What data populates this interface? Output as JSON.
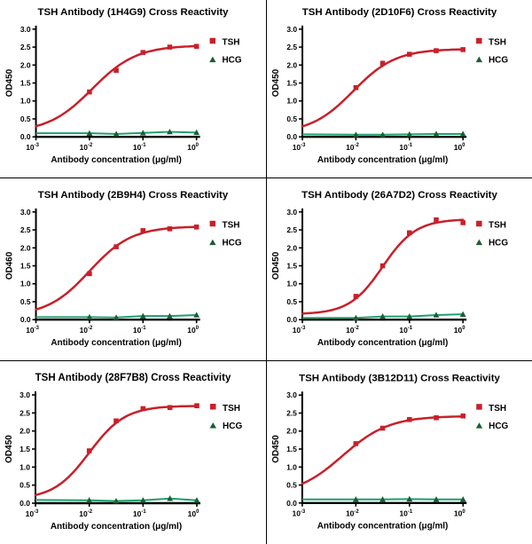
{
  "page": {
    "background": "#ffffff"
  },
  "colors": {
    "tsh": "#c8202a",
    "hcg_line": "#1f9e6e",
    "hcg_marker": "#1b5e33",
    "axis": "#000000",
    "text": "#000000",
    "separator": "#000000"
  },
  "chart_data": [
    {
      "type": "line",
      "title": "TSH Antibody (1H4G9) Cross Reactivity",
      "xlabel": "Antibody concentration (μg/ml)",
      "ylabel": "OD450",
      "xscale": "log",
      "xlim_log10": [
        -3,
        0
      ],
      "ylim": [
        0,
        3
      ],
      "y_ticks": [
        "0.0",
        "0.5",
        "1.0",
        "1.5",
        "2.0",
        "2.5",
        "3.0"
      ],
      "x_tick_base": "10",
      "x_tick_exponents": [
        "-3",
        "-2",
        "-1",
        "0"
      ],
      "legend_entries": [
        "TSH",
        "HCG"
      ],
      "legend_position": "right",
      "grid": false,
      "series": [
        {
          "name": "TSH",
          "marker": "square",
          "x": [
            0.01,
            0.0316,
            0.1,
            0.316,
            1.0
          ],
          "y": [
            1.25,
            1.85,
            2.35,
            2.5,
            2.52
          ],
          "fit4pl": {
            "bottom": 0.12,
            "top": 2.55,
            "logec50": -1.95,
            "hill": 1.05
          }
        },
        {
          "name": "HCG",
          "marker": "triangle",
          "line_x": [
            0.001,
            0.01,
            0.0316,
            0.1,
            0.316,
            1.0
          ],
          "line_y": [
            0.1,
            0.1,
            0.08,
            0.11,
            0.14,
            0.12
          ],
          "x": [
            0.01,
            0.0316,
            0.1,
            0.316,
            1.0
          ],
          "y": [
            0.1,
            0.08,
            0.11,
            0.14,
            0.12
          ]
        }
      ]
    },
    {
      "type": "line",
      "title": "TSH Antibody (2D10F6) Cross Reactivity",
      "xlabel": "Antibody concentration (μg/ml)",
      "ylabel": "OD450",
      "xscale": "log",
      "xlim_log10": [
        -3,
        0
      ],
      "ylim": [
        0,
        3
      ],
      "y_ticks": [
        "0.0",
        "0.5",
        "1.0",
        "1.5",
        "2.0",
        "2.5",
        "3.0"
      ],
      "x_tick_base": "10",
      "x_tick_exponents": [
        "-3",
        "-2",
        "-1",
        "0"
      ],
      "legend_entries": [
        "TSH",
        "HCG"
      ],
      "legend_position": "right",
      "grid": false,
      "series": [
        {
          "name": "TSH",
          "marker": "square",
          "x": [
            0.01,
            0.0316,
            0.1,
            0.316,
            1.0
          ],
          "y": [
            1.37,
            2.05,
            2.3,
            2.4,
            2.43
          ],
          "fit4pl": {
            "bottom": 0.1,
            "top": 2.45,
            "logec50": -2.05,
            "hill": 1.1
          }
        },
        {
          "name": "HCG",
          "marker": "triangle",
          "line_x": [
            0.001,
            0.01,
            0.0316,
            0.1,
            0.316,
            1.0
          ],
          "line_y": [
            0.07,
            0.06,
            0.06,
            0.07,
            0.08,
            0.08
          ],
          "x": [
            0.01,
            0.0316,
            0.1,
            0.316,
            1.0
          ],
          "y": [
            0.06,
            0.06,
            0.07,
            0.08,
            0.08
          ]
        }
      ]
    },
    {
      "type": "line",
      "title": "TSH Antibody (2B9H4) Cross Reactivity",
      "xlabel": "Antibody concentration (μg/ml)",
      "ylabel": "OD460",
      "xscale": "log",
      "xlim_log10": [
        -3,
        0
      ],
      "ylim": [
        0,
        3
      ],
      "y_ticks": [
        "0.0",
        "0.5",
        "1.0",
        "1.5",
        "2.0",
        "2.5",
        "3.0"
      ],
      "x_tick_base": "10",
      "x_tick_exponents": [
        "-3",
        "-2",
        "-1",
        "0"
      ],
      "legend_entries": [
        "TSH",
        "HCG"
      ],
      "legend_position": "right",
      "grid": false,
      "series": [
        {
          "name": "TSH",
          "marker": "square",
          "x": [
            0.01,
            0.0316,
            0.1,
            0.316,
            1.0
          ],
          "y": [
            1.28,
            2.03,
            2.48,
            2.53,
            2.58
          ],
          "fit4pl": {
            "bottom": 0.1,
            "top": 2.6,
            "logec50": -2.0,
            "hill": 1.1
          }
        },
        {
          "name": "HCG",
          "marker": "triangle",
          "line_x": [
            0.001,
            0.01,
            0.0316,
            0.1,
            0.316,
            1.0
          ],
          "line_y": [
            0.07,
            0.07,
            0.06,
            0.1,
            0.1,
            0.13
          ],
          "x": [
            0.01,
            0.0316,
            0.1,
            0.316,
            1.0
          ],
          "y": [
            0.07,
            0.06,
            0.1,
            0.1,
            0.13
          ]
        }
      ]
    },
    {
      "type": "line",
      "title": "TSH Antibody (26A7D2) Cross Reactivity",
      "xlabel": "Antibody concentration (μg/ml)",
      "ylabel": "OD450",
      "xscale": "log",
      "xlim_log10": [
        -3,
        0
      ],
      "ylim": [
        0,
        3
      ],
      "y_ticks": [
        "0.0",
        "0.5",
        "1.0",
        "1.5",
        "2.0",
        "2.5",
        "3.0"
      ],
      "x_tick_base": "10",
      "x_tick_exponents": [
        "-3",
        "-2",
        "-1",
        "0"
      ],
      "legend_entries": [
        "TSH",
        "HCG"
      ],
      "legend_position": "right",
      "grid": false,
      "series": [
        {
          "name": "TSH",
          "marker": "square",
          "x": [
            0.01,
            0.0316,
            0.1,
            0.316,
            1.0
          ],
          "y": [
            0.65,
            1.5,
            2.42,
            2.78,
            2.7
          ],
          "fit4pl": {
            "bottom": 0.15,
            "top": 2.8,
            "logec50": -1.5,
            "hill": 1.4
          }
        },
        {
          "name": "HCG",
          "marker": "triangle",
          "line_x": [
            0.001,
            0.01,
            0.0316,
            0.1,
            0.316,
            1.0
          ],
          "line_y": [
            0.05,
            0.05,
            0.09,
            0.09,
            0.13,
            0.15
          ],
          "x": [
            0.01,
            0.0316,
            0.1,
            0.316,
            1.0
          ],
          "y": [
            0.05,
            0.09,
            0.09,
            0.13,
            0.15
          ]
        }
      ]
    },
    {
      "type": "line",
      "title": "TSH Antibody (28F7B8) Cross Reactivity",
      "xlabel": "Antibody concentration (μg/ml)",
      "ylabel": "OD450",
      "xscale": "log",
      "xlim_log10": [
        -3,
        0
      ],
      "ylim": [
        0,
        3
      ],
      "y_ticks": [
        "0.0",
        "0.5",
        "1.0",
        "1.5",
        "2.0",
        "2.5",
        "3.0"
      ],
      "x_tick_base": "10",
      "x_tick_exponents": [
        "-3",
        "-2",
        "-1",
        "0"
      ],
      "legend_entries": [
        "TSH",
        "HCG"
      ],
      "legend_position": "right",
      "grid": false,
      "series": [
        {
          "name": "TSH",
          "marker": "square",
          "x": [
            0.01,
            0.0316,
            0.1,
            0.316,
            1.0
          ],
          "y": [
            1.45,
            2.28,
            2.62,
            2.65,
            2.7
          ],
          "fit4pl": {
            "bottom": 0.1,
            "top": 2.7,
            "logec50": -2.0,
            "hill": 1.3
          }
        },
        {
          "name": "HCG",
          "marker": "triangle",
          "line_x": [
            0.001,
            0.01,
            0.0316,
            0.1,
            0.316,
            1.0
          ],
          "line_y": [
            0.09,
            0.08,
            0.06,
            0.08,
            0.13,
            0.08
          ],
          "x": [
            0.01,
            0.0316,
            0.1,
            0.316,
            1.0
          ],
          "y": [
            0.08,
            0.06,
            0.08,
            0.13,
            0.08
          ]
        }
      ]
    },
    {
      "type": "line",
      "title": "TSH Antibody (3B12D11) Cross Reactivity",
      "xlabel": "Antibody concentration (μg/ml)",
      "ylabel": "OD450",
      "xscale": "log",
      "xlim_log10": [
        -3,
        0
      ],
      "ylim": [
        0,
        3
      ],
      "y_ticks": [
        "0.0",
        "0.5",
        "1.0",
        "1.5",
        "2.0",
        "2.5",
        "3.0"
      ],
      "x_tick_base": "10",
      "x_tick_exponents": [
        "-3",
        "-2",
        "-1",
        "0"
      ],
      "legend_entries": [
        "TSH",
        "HCG"
      ],
      "legend_position": "right",
      "grid": false,
      "series": [
        {
          "name": "TSH",
          "marker": "square",
          "x": [
            0.01,
            0.0316,
            0.1,
            0.316,
            1.0
          ],
          "y": [
            1.65,
            2.08,
            2.32,
            2.37,
            2.42
          ],
          "fit4pl": {
            "bottom": 0.2,
            "top": 2.42,
            "logec50": -2.25,
            "hill": 1.0
          }
        },
        {
          "name": "HCG",
          "marker": "triangle",
          "line_x": [
            0.001,
            0.01,
            0.0316,
            0.1,
            0.316,
            1.0
          ],
          "line_y": [
            0.1,
            0.1,
            0.1,
            0.11,
            0.1,
            0.1
          ],
          "x": [
            0.01,
            0.0316,
            0.1,
            0.316,
            1.0
          ],
          "y": [
            0.1,
            0.1,
            0.11,
            0.1,
            0.1
          ]
        }
      ]
    }
  ]
}
